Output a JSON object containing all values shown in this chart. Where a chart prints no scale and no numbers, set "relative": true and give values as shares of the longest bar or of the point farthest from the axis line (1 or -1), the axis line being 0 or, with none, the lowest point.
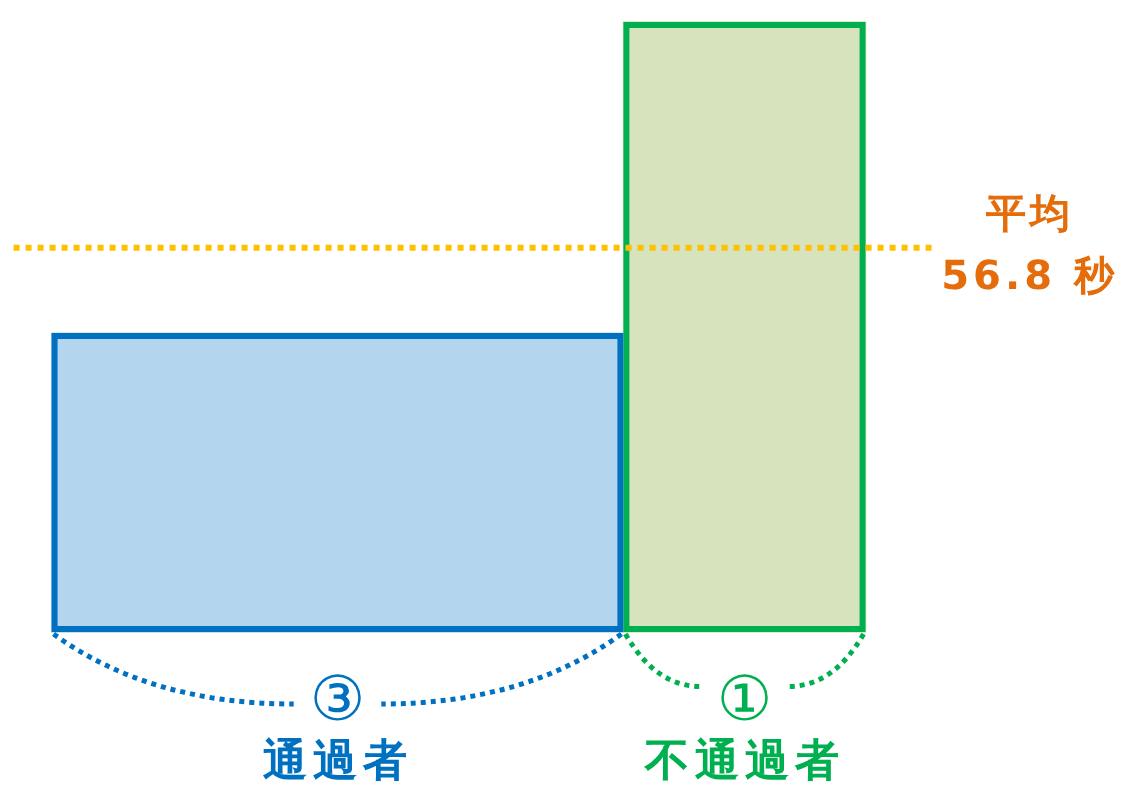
{
  "chart_data": {
    "type": "bar",
    "categories": [
      "通過者",
      "不通過者"
    ],
    "values": [
      0.49,
      1
    ],
    "colors": [
      "#b4d5ee",
      "#d7e3bd"
    ],
    "relative": true,
    "ref_lines": [
      {
        "axis": "y",
        "value": 0.63,
        "label": "平均\n56.8 秒",
        "color": "#ffc000",
        "line_style": "dotted"
      }
    ],
    "annotations": [
      "③",
      "①"
    ]
  }
}
